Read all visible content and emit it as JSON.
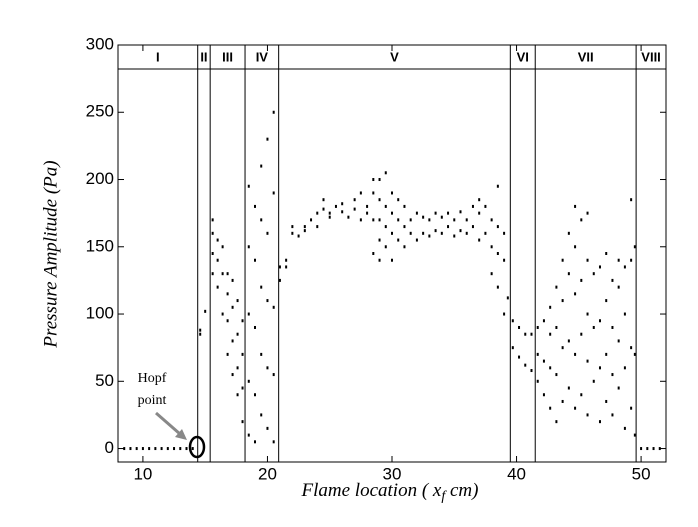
{
  "chart_data": {
    "type": "scatter",
    "x_label": [
      "Flame location ( x",
      "f",
      " cm)"
    ],
    "y_label": "Pressure Amplitude (Pa)",
    "annotation": [
      "Hopf",
      "point"
    ],
    "color": "#000000",
    "xlim": [
      8,
      52
    ],
    "ylim": [
      -10,
      300
    ],
    "xticks": [
      10,
      20,
      30,
      40,
      50
    ],
    "yticks": [
      0,
      50,
      100,
      150,
      200,
      250,
      300
    ],
    "region_bounds": [
      14.4,
      15.4,
      18.2,
      20.9,
      39.5,
      41.5,
      49.6
    ],
    "region_labels": [
      "I",
      "II",
      "III",
      "IV",
      "V",
      "VI",
      "VII",
      "VIII"
    ],
    "x": [
      8.5,
      9,
      9.5,
      10,
      10.5,
      11,
      11.5,
      12,
      12.5,
      13,
      13.5,
      14,
      14.6,
      14.6,
      15,
      15.6,
      15.6,
      15.6,
      15.6,
      16,
      16,
      16,
      16.4,
      16.4,
      16.4,
      16.8,
      16.8,
      16.8,
      16.8,
      17.2,
      17.2,
      17.2,
      17.2,
      17.6,
      17.6,
      17.6,
      17.6,
      18,
      18,
      18,
      18,
      18.5,
      18.5,
      18.5,
      18.5,
      18.5,
      19,
      19,
      19,
      19,
      19,
      19.5,
      19.5,
      19.5,
      19.5,
      19.5,
      20,
      20,
      20,
      20,
      20,
      20.5,
      20.5,
      20.5,
      20.5,
      20.5,
      21,
      21,
      21.5,
      21.5,
      22,
      22,
      22.5,
      23,
      23,
      23.5,
      24,
      24,
      24.5,
      24.5,
      25,
      25,
      25.5,
      26,
      26,
      26.5,
      27,
      27,
      27.5,
      27.5,
      28,
      28,
      28.5,
      28.5,
      28.5,
      28.5,
      29,
      29,
      29,
      29,
      29,
      29.5,
      29.5,
      29.5,
      29.5,
      30,
      30,
      30,
      30,
      30.5,
      30.5,
      30.5,
      31,
      31,
      31,
      31.5,
      31.5,
      32,
      32,
      32.5,
      32.5,
      33,
      33,
      33.5,
      33.5,
      34,
      34,
      34.5,
      34.5,
      35,
      35,
      35.5,
      35.5,
      36,
      36,
      36.5,
      36.5,
      37,
      37,
      37,
      37.5,
      37.5,
      38,
      38,
      38,
      38.5,
      38.5,
      38.5,
      38.5,
      39,
      39,
      39,
      39.3,
      39.7,
      39.7,
      40.2,
      40.2,
      40.7,
      40.7,
      41.2,
      41.2,
      41.7,
      41.7,
      41.7,
      42.2,
      42.2,
      42.2,
      42.7,
      42.7,
      42.7,
      42.7,
      43.2,
      43.2,
      43.2,
      43.2,
      43.7,
      43.7,
      43.7,
      43.7,
      44.2,
      44.2,
      44.2,
      44.2,
      44.7,
      44.7,
      44.7,
      44.7,
      44.7,
      45.2,
      45.2,
      45.2,
      45.2,
      45.7,
      45.7,
      45.7,
      45.7,
      45.7,
      46.2,
      46.2,
      46.2,
      46.7,
      46.7,
      46.7,
      46.7,
      47.2,
      47.2,
      47.2,
      47.2,
      47.7,
      47.7,
      47.7,
      47.7,
      48.2,
      48.2,
      48.2,
      48.2,
      48.7,
      48.7,
      48.7,
      48.7,
      49.2,
      49.2,
      49.2,
      49.2,
      49.5,
      49.5,
      49.5,
      50,
      50.5,
      51,
      51.5
    ],
    "values": [
      0,
      0,
      0,
      0,
      0,
      0,
      0,
      0,
      0,
      0,
      0,
      0,
      85,
      88,
      102,
      130,
      145,
      160,
      170,
      120,
      140,
      155,
      100,
      130,
      150,
      70,
      95,
      115,
      130,
      55,
      80,
      105,
      125,
      40,
      60,
      85,
      110,
      20,
      45,
      70,
      95,
      10,
      50,
      100,
      150,
      195,
      5,
      40,
      90,
      140,
      180,
      25,
      70,
      120,
      170,
      210,
      15,
      60,
      110,
      160,
      230,
      5,
      55,
      105,
      190,
      250,
      125,
      135,
      135,
      140,
      165,
      160,
      158,
      162,
      165,
      170,
      175,
      165,
      185,
      178,
      172,
      175,
      180,
      182,
      176,
      172,
      178,
      185,
      170,
      190,
      180,
      175,
      145,
      170,
      190,
      200,
      140,
      155,
      170,
      185,
      200,
      150,
      165,
      180,
      205,
      140,
      160,
      175,
      190,
      155,
      170,
      185,
      150,
      165,
      180,
      160,
      170,
      155,
      175,
      160,
      172,
      158,
      170,
      162,
      175,
      160,
      172,
      165,
      175,
      158,
      170,
      162,
      176,
      160,
      170,
      165,
      180,
      155,
      175,
      185,
      160,
      180,
      130,
      150,
      170,
      120,
      145,
      165,
      195,
      100,
      140,
      160,
      112,
      95,
      75,
      90,
      68,
      85,
      62,
      85,
      58,
      50,
      70,
      90,
      40,
      65,
      95,
      30,
      60,
      85,
      105,
      20,
      55,
      90,
      120,
      35,
      75,
      110,
      140,
      45,
      80,
      130,
      160,
      30,
      70,
      115,
      150,
      180,
      40,
      85,
      125,
      170,
      25,
      65,
      100,
      140,
      175,
      50,
      90,
      130,
      20,
      60,
      95,
      135,
      35,
      70,
      110,
      145,
      25,
      55,
      90,
      125,
      45,
      80,
      120,
      140,
      15,
      60,
      100,
      135,
      30,
      75,
      140,
      185,
      10,
      70,
      150,
      0,
      0,
      0,
      0
    ]
  }
}
